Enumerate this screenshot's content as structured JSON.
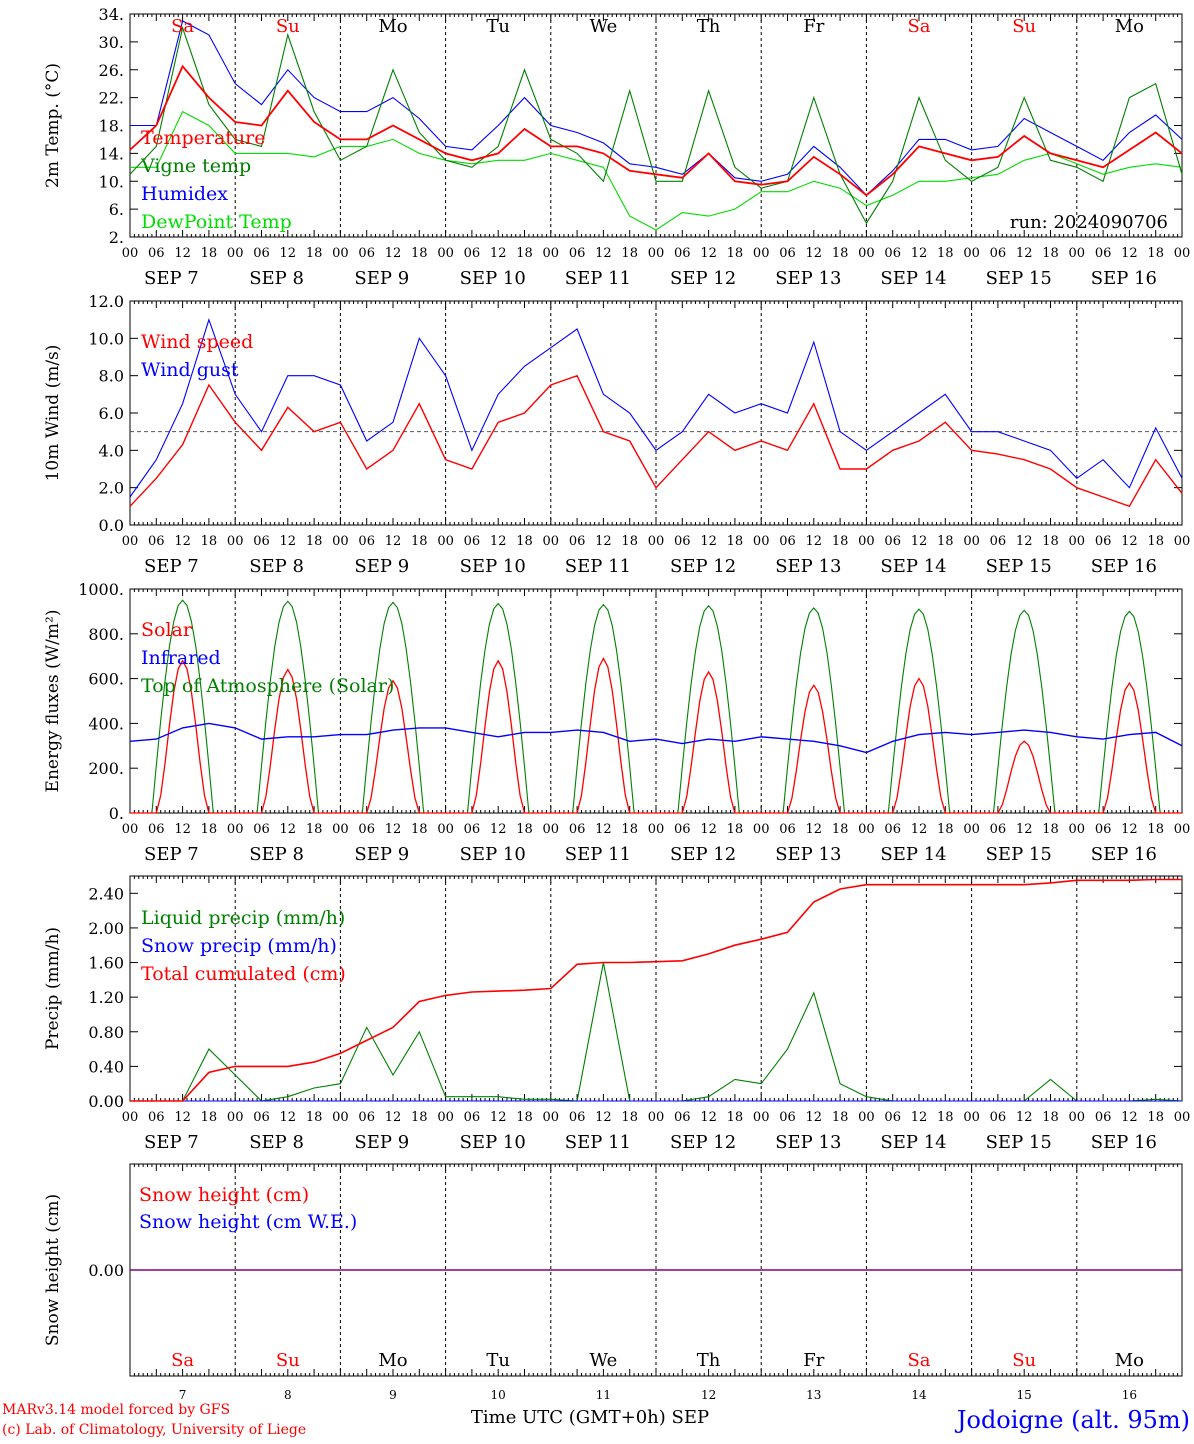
{
  "chart_data": [
    {
      "type": "line",
      "ylabel": "2m Temp. (°C)",
      "ylim": [
        2,
        34
      ],
      "yticks": [
        "2.",
        "6.",
        "10.",
        "14.",
        "18.",
        "22.",
        "26.",
        "30.",
        "34."
      ],
      "day_names": [
        "Sa",
        "Su",
        "Mo",
        "Tu",
        "We",
        "Th",
        "Fr",
        "Sa",
        "Su",
        "Mo"
      ],
      "run_label": "run: 2024090706",
      "x": [
        0,
        6,
        12,
        18,
        24,
        30,
        36,
        42,
        48,
        54,
        60,
        66,
        72,
        78,
        84,
        90,
        96,
        102,
        108,
        114,
        120,
        126,
        132,
        138,
        144,
        150,
        156,
        162,
        168,
        174,
        180,
        186,
        192,
        198,
        204,
        210,
        216,
        222,
        228,
        234,
        240
      ],
      "series": [
        {
          "name": "Temperature",
          "values": [
            14.5,
            18,
            26.5,
            22,
            18.5,
            18,
            23,
            18.5,
            16,
            16,
            18,
            16,
            14,
            13,
            14,
            17.5,
            15,
            15,
            14,
            11.5,
            11,
            10.5,
            14,
            10,
            9.5,
            10,
            13.5,
            11,
            8,
            11,
            15,
            14,
            13,
            13.5,
            16.5,
            14,
            13,
            12,
            14.5,
            17,
            14
          ]
        },
        {
          "name": "Vigne temp",
          "values": [
            11,
            15,
            32,
            21,
            16,
            15,
            31,
            20,
            13,
            15,
            26,
            17,
            13,
            12,
            15,
            26,
            16,
            14,
            10,
            23,
            10,
            10,
            23,
            12,
            9,
            10,
            22,
            11,
            4,
            10,
            22,
            13,
            10,
            12,
            22,
            13,
            12,
            10,
            22,
            24,
            11
          ]
        },
        {
          "name": "Humidex",
          "values": [
            18,
            18,
            33,
            31,
            24,
            21,
            26,
            22,
            20,
            20,
            22,
            19,
            15,
            14.5,
            18,
            22,
            18,
            17,
            15.5,
            12.5,
            12,
            11,
            14,
            10.5,
            10,
            11,
            15,
            12,
            8,
            11.5,
            16,
            16,
            14.5,
            15,
            19,
            17,
            15,
            13,
            17,
            19.5,
            16
          ]
        },
        {
          "name": "DewPoint Temp",
          "values": [
            12,
            12,
            20,
            18,
            14,
            14,
            14,
            13.5,
            15,
            15,
            16,
            14,
            13,
            12.5,
            13,
            13,
            14,
            13,
            12,
            5,
            3,
            5.5,
            5,
            6,
            8.5,
            8.5,
            10,
            9,
            6.5,
            8,
            10,
            10,
            10.5,
            11,
            13,
            14,
            12.5,
            11,
            12,
            12.5,
            12
          ]
        }
      ]
    },
    {
      "type": "line",
      "ylabel": "10m Wind (m/s)",
      "ylim": [
        0,
        12
      ],
      "yticks": [
        "0.0",
        "2.0",
        "4.0",
        "6.0",
        "8.0",
        "10.0",
        "12.0"
      ],
      "x": [
        0,
        6,
        12,
        18,
        24,
        30,
        36,
        42,
        48,
        54,
        60,
        66,
        72,
        78,
        84,
        90,
        96,
        102,
        108,
        114,
        120,
        126,
        132,
        138,
        144,
        150,
        156,
        162,
        168,
        174,
        180,
        186,
        192,
        198,
        204,
        210,
        216,
        222,
        228,
        234,
        240
      ],
      "series": [
        {
          "name": "Wind speed",
          "values": [
            1.0,
            2.5,
            4.3,
            7.5,
            5.5,
            4.0,
            6.3,
            5.0,
            5.5,
            3.0,
            4.0,
            6.5,
            3.5,
            3.0,
            5.5,
            6.0,
            7.5,
            8.0,
            5.0,
            4.5,
            2.0,
            3.5,
            5.0,
            4.0,
            4.5,
            4.0,
            6.5,
            3.0,
            3.0,
            4.0,
            4.5,
            5.5,
            4.0,
            3.8,
            3.5,
            3.0,
            2.0,
            1.5,
            1.0,
            3.5,
            1.7
          ]
        },
        {
          "name": "Wind gust",
          "values": [
            1.5,
            3.5,
            6.5,
            11.0,
            7.0,
            5.0,
            8.0,
            8.0,
            7.5,
            4.5,
            5.5,
            10.0,
            8.0,
            4.0,
            7.0,
            8.5,
            9.5,
            10.5,
            7.0,
            6.0,
            4.0,
            5.0,
            7.0,
            6.0,
            6.5,
            6.0,
            9.8,
            5.0,
            4.0,
            5.0,
            6.0,
            7.0,
            5.0,
            5.0,
            4.5,
            4.0,
            2.5,
            3.5,
            2.0,
            5.2,
            2.5
          ]
        }
      ],
      "reference_line": 5.0
    },
    {
      "type": "line",
      "ylabel": "Energy fluxes (W/m²)",
      "ylim": [
        0,
        1000
      ],
      "yticks": [
        "0.",
        "200.",
        "400.",
        "600.",
        "800.",
        "1000."
      ],
      "series": [
        {
          "name": "Solar",
          "peaks": [
            680,
            640,
            590,
            680,
            690,
            630,
            570,
            600,
            320,
            580
          ]
        },
        {
          "name": "Infrared",
          "x": [
            0,
            6,
            12,
            18,
            24,
            30,
            36,
            42,
            48,
            54,
            60,
            66,
            72,
            78,
            84,
            90,
            96,
            102,
            108,
            114,
            120,
            126,
            132,
            138,
            144,
            150,
            156,
            162,
            168,
            174,
            180,
            186,
            192,
            198,
            204,
            210,
            216,
            222,
            228,
            234,
            240
          ],
          "values": [
            320,
            330,
            380,
            400,
            380,
            330,
            340,
            340,
            350,
            350,
            370,
            380,
            380,
            360,
            340,
            360,
            360,
            370,
            360,
            320,
            330,
            310,
            330,
            320,
            340,
            330,
            320,
            300,
            270,
            320,
            350,
            360,
            350,
            360,
            370,
            360,
            340,
            330,
            350,
            360,
            300
          ]
        },
        {
          "name": "Top of Atmosphere (Solar)",
          "peaks": [
            950,
            945,
            940,
            935,
            930,
            925,
            915,
            910,
            905,
            900
          ]
        }
      ]
    },
    {
      "type": "line",
      "ylabel": "Precip (mm/h)",
      "ylim": [
        0,
        2.6
      ],
      "yticks": [
        "0.00",
        "0.40",
        "0.80",
        "1.20",
        "1.60",
        "2.00",
        "2.40"
      ],
      "x": [
        0,
        6,
        12,
        18,
        24,
        30,
        36,
        42,
        48,
        54,
        60,
        66,
        72,
        78,
        84,
        90,
        96,
        102,
        108,
        114,
        120,
        126,
        132,
        138,
        144,
        150,
        156,
        162,
        168,
        174,
        180,
        186,
        192,
        198,
        204,
        210,
        216,
        222,
        228,
        234,
        240
      ],
      "series": [
        {
          "name": "Liquid precip (mm/h)",
          "values": [
            0,
            0,
            0,
            0.6,
            0.3,
            0,
            0.05,
            0.15,
            0.2,
            0.85,
            0.3,
            0.8,
            0.05,
            0.05,
            0.05,
            0.02,
            0.02,
            0,
            1.6,
            0,
            0,
            0,
            0.05,
            0.25,
            0.2,
            0.6,
            1.25,
            0.2,
            0.05,
            0,
            0,
            0,
            0,
            0,
            0,
            0.25,
            0,
            0,
            0,
            0.02,
            0
          ]
        },
        {
          "name": "Snow precip (mm/h)",
          "values": [
            0,
            0,
            0,
            0,
            0,
            0,
            0,
            0,
            0,
            0,
            0,
            0,
            0,
            0,
            0,
            0,
            0,
            0,
            0,
            0,
            0,
            0,
            0,
            0,
            0,
            0,
            0,
            0,
            0,
            0,
            0,
            0,
            0,
            0,
            0,
            0,
            0,
            0,
            0,
            0,
            0
          ]
        },
        {
          "name": "Total cumulated (cm)",
          "values": [
            0,
            0,
            0,
            0.33,
            0.4,
            0.4,
            0.4,
            0.45,
            0.55,
            0.7,
            0.85,
            1.15,
            1.22,
            1.26,
            1.27,
            1.28,
            1.3,
            1.58,
            1.6,
            1.6,
            1.61,
            1.62,
            1.7,
            1.8,
            1.87,
            1.95,
            2.3,
            2.45,
            2.5,
            2.5,
            2.5,
            2.5,
            2.5,
            2.5,
            2.5,
            2.52,
            2.55,
            2.55,
            2.55,
            2.56,
            2.56
          ]
        }
      ]
    },
    {
      "type": "line",
      "ylabel": "Snow height (cm)",
      "ylim": [
        -1,
        1
      ],
      "yticks": [
        "0.00"
      ],
      "series": [
        {
          "name": "Snow height (cm)",
          "values": [
            0,
            0
          ]
        },
        {
          "name": "Snow height (cm W.E.)",
          "values": [
            0,
            0
          ]
        }
      ],
      "day_numbers": [
        "7",
        "8",
        "9",
        "10",
        "11",
        "12",
        "13",
        "14",
        "15",
        "16"
      ],
      "xlabel": "Time UTC (GMT+0h) SEP"
    }
  ],
  "axis": {
    "hour_labels": [
      "00",
      "06",
      "12",
      "18"
    ],
    "final_hour": "00",
    "date_labels": [
      "SEP  7",
      "SEP  8",
      "SEP  9",
      "SEP 10",
      "SEP 11",
      "SEP 12",
      "SEP 13",
      "SEP 14",
      "SEP 15",
      "SEP 16"
    ]
  },
  "colors": {
    "red": "#ff0000",
    "green": "#008000",
    "blue": "#0000ff",
    "lightgreen": "#00dd00",
    "purple": "#800080",
    "black": "#000000"
  },
  "footer": {
    "credit_1": "MARv3.14 model forced by GFS",
    "credit_2": "(c) Lab. of Climatology, University of Liege",
    "station": "Jodoigne (alt. 95m)"
  }
}
